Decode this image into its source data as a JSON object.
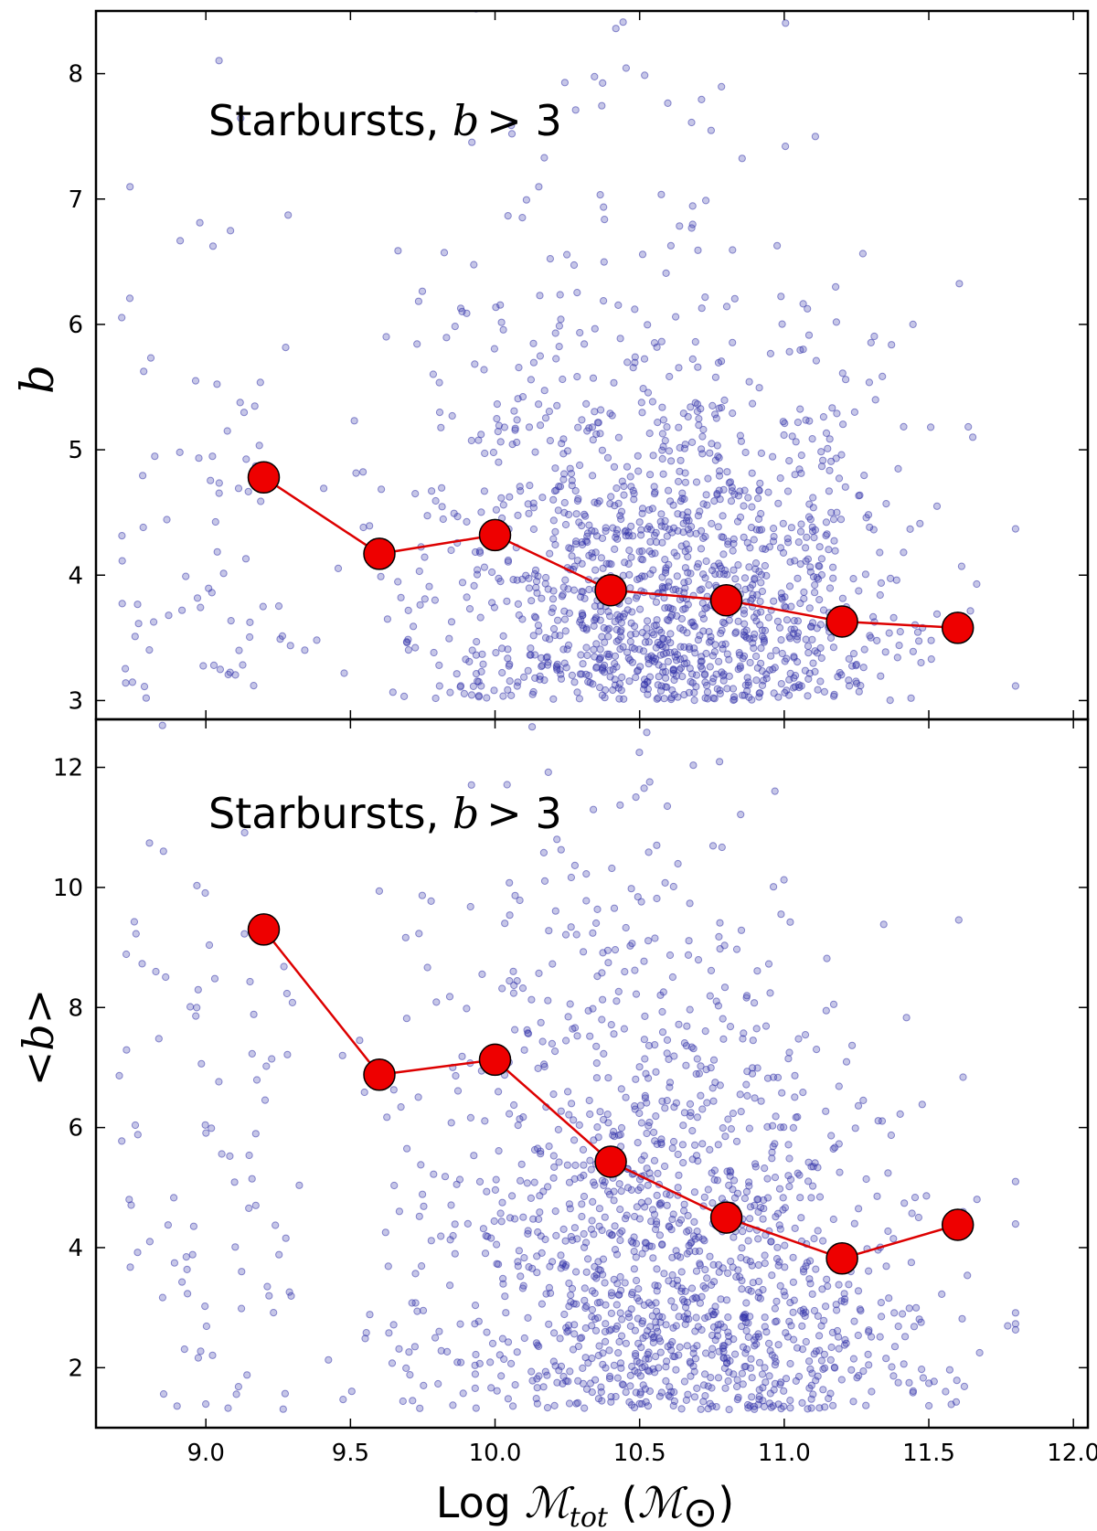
{
  "figure": {
    "xlabel": {
      "prefix": "Log ",
      "symbol": "ℳ",
      "sub": "tot",
      "paren_open": "  (",
      "paren_symbol": "ℳ",
      "paren_sub": "⊙",
      "paren_close": ")"
    },
    "x_ticks": [
      "9.0",
      "9.5",
      "10.0",
      "10.5",
      "11.0",
      "11.5",
      "12.0"
    ]
  },
  "chart_data": [
    {
      "type": "scatter",
      "panel": "top",
      "annotation": {
        "word": "Starbursts, ",
        "var": "b",
        "rest": "> 3"
      },
      "ylabel": "b",
      "xlim": [
        8.62,
        12.05
      ],
      "ylim": [
        2.85,
        8.5
      ],
      "y_ticks": [
        "3",
        "4",
        "5",
        "6",
        "7",
        "8"
      ],
      "grid": false,
      "scatter_color": "#3333aa",
      "line_color": "#dd0000",
      "marker_color": "#ee0000",
      "scatter_count": 1500,
      "binned_mean": {
        "x": [
          9.2,
          9.6,
          10.0,
          10.4,
          10.8,
          11.2,
          11.6
        ],
        "y": [
          4.78,
          4.17,
          4.32,
          3.88,
          3.8,
          3.63,
          3.58
        ]
      }
    },
    {
      "type": "scatter",
      "panel": "bottom",
      "annotation": {
        "word": "Starbursts, ",
        "var": "b",
        "rest": "> 3"
      },
      "ylabel": "<b>",
      "xlim": [
        8.62,
        12.05
      ],
      "ylim": [
        1.0,
        12.8
      ],
      "y_ticks": [
        "2",
        "4",
        "6",
        "8",
        "10",
        "12"
      ],
      "grid": false,
      "scatter_color": "#3333aa",
      "line_color": "#dd0000",
      "marker_color": "#ee0000",
      "scatter_count": 1500,
      "binned_mean": {
        "x": [
          9.2,
          9.6,
          10.0,
          10.4,
          10.8,
          11.2,
          11.6
        ],
        "y": [
          9.3,
          6.88,
          7.13,
          5.43,
          4.5,
          3.82,
          4.38
        ]
      }
    }
  ]
}
